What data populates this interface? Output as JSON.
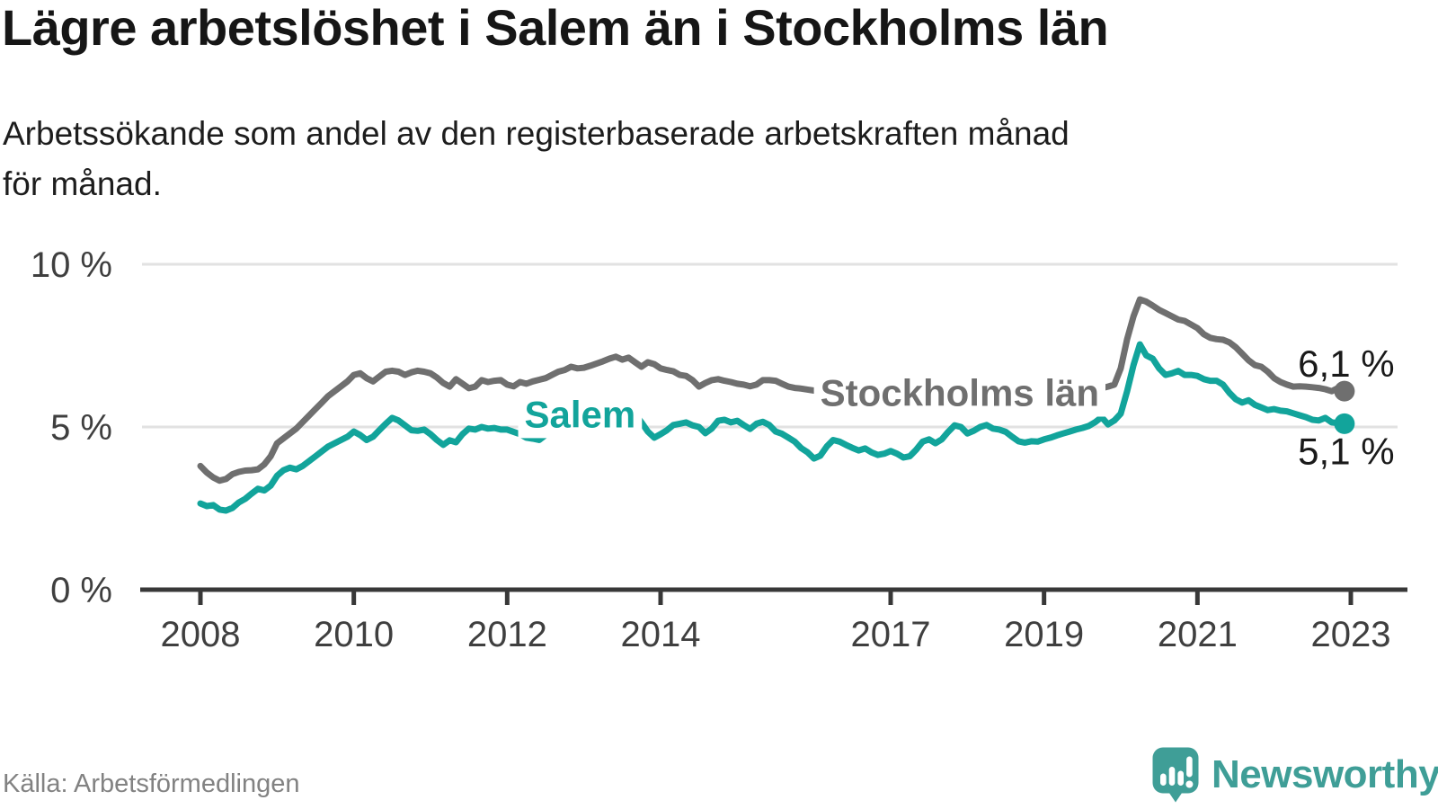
{
  "title": "Lägre arbetslöshet i Salem än i Stockholms län",
  "subtitle_lines": [
    "Arbetssökande som andel av den registerbaserade arbetskraften månad",
    "för månad."
  ],
  "source": "Källa: Arbetsförmedlingen",
  "brand": {
    "name": "Newsworthy",
    "icon": "bar-chart-speech-bubble-icon",
    "color": "#3f9e97"
  },
  "colors": {
    "teal": "#12a49b",
    "gray": "#6f6f6f",
    "grid": "#e2e2e2",
    "axis": "#383838",
    "tick_label": "#3f3f3f",
    "text_dark": "#1a1a1a",
    "source": "#828282",
    "brand": "#3f9e97"
  },
  "chart_data": {
    "type": "line",
    "title": "Lägre arbetslöshet i Salem än i Stockholms län",
    "xlabel": "",
    "ylabel": "Arbetssökande som andel av den registerbaserade arbetskraften",
    "x_start": 2008.0,
    "points_per_year": 12,
    "xlim": [
      2007.3,
      2023.8
    ],
    "ylim": [
      0,
      10.3
    ],
    "grid": true,
    "legend_position": "inline-labels",
    "y_ticks": [
      {
        "value": 0,
        "label": "0 %"
      },
      {
        "value": 5,
        "label": "5 %"
      },
      {
        "value": 10,
        "label": "10 %"
      }
    ],
    "x_ticks": [
      {
        "value": 2008,
        "label": "2008"
      },
      {
        "value": 2010,
        "label": "2010"
      },
      {
        "value": 2012,
        "label": "2012"
      },
      {
        "value": 2014,
        "label": "2014"
      },
      {
        "value": 2017,
        "label": "2017"
      },
      {
        "value": 2019,
        "label": "2019"
      },
      {
        "value": 2021,
        "label": "2021"
      },
      {
        "value": 2023,
        "label": "2023"
      }
    ],
    "series": [
      {
        "name": "Stockholms län",
        "color": "#6f6f6f",
        "end_label": "6,1 %",
        "end_label_side": "above",
        "label_pos": {
          "year": 2017.9,
          "value": 6.05
        },
        "values": [
          3.8,
          3.6,
          3.45,
          3.35,
          3.4,
          3.55,
          3.62,
          3.66,
          3.67,
          3.7,
          3.85,
          4.1,
          4.5,
          4.65,
          4.8,
          4.95,
          5.15,
          5.35,
          5.55,
          5.75,
          5.95,
          6.1,
          6.25,
          6.4,
          6.6,
          6.65,
          6.5,
          6.4,
          6.55,
          6.7,
          6.73,
          6.7,
          6.6,
          6.68,
          6.73,
          6.7,
          6.65,
          6.52,
          6.35,
          6.24,
          6.47,
          6.33,
          6.19,
          6.24,
          6.44,
          6.38,
          6.42,
          6.44,
          6.3,
          6.25,
          6.38,
          6.33,
          6.4,
          6.45,
          6.5,
          6.6,
          6.7,
          6.75,
          6.85,
          6.8,
          6.82,
          6.88,
          6.95,
          7.02,
          7.1,
          7.16,
          7.07,
          7.13,
          6.99,
          6.85,
          6.99,
          6.93,
          6.8,
          6.75,
          6.71,
          6.6,
          6.57,
          6.44,
          6.24,
          6.35,
          6.44,
          6.47,
          6.42,
          6.38,
          6.33,
          6.3,
          6.25,
          6.3,
          6.44,
          6.44,
          6.42,
          6.33,
          6.24,
          6.2,
          6.18,
          6.15,
          6.12,
          6.1,
          6.08,
          6.05,
          6.02,
          6.0,
          5.98,
          6.0,
          6.02,
          6.0,
          5.98,
          5.96,
          5.95,
          5.92,
          5.9,
          5.93,
          5.96,
          5.92,
          5.88,
          5.9,
          5.95,
          5.98,
          6.0,
          5.97,
          5.95,
          5.92,
          5.9,
          5.88,
          5.85,
          5.88,
          5.9,
          5.93,
          5.96,
          5.99,
          6.02,
          6.05,
          6.08,
          6.1,
          6.12,
          6.1,
          6.12,
          6.15,
          6.17,
          6.15,
          6.2,
          6.19,
          6.24,
          6.3,
          6.8,
          7.7,
          8.4,
          8.92,
          8.85,
          8.73,
          8.6,
          8.5,
          8.4,
          8.3,
          8.26,
          8.15,
          8.04,
          7.85,
          7.74,
          7.7,
          7.68,
          7.6,
          7.45,
          7.25,
          7.05,
          6.9,
          6.85,
          6.7,
          6.5,
          6.38,
          6.3,
          6.24,
          6.25,
          6.24,
          6.22,
          6.2,
          6.16,
          6.1,
          6.2,
          6.1
        ]
      },
      {
        "name": "Salem",
        "color": "#12a49b",
        "end_label": "5,1 %",
        "end_label_side": "below",
        "label_pos": {
          "year": 2012.95,
          "value": 5.39
        },
        "values": [
          2.65,
          2.57,
          2.6,
          2.46,
          2.43,
          2.51,
          2.68,
          2.79,
          2.95,
          3.1,
          3.05,
          3.2,
          3.5,
          3.67,
          3.75,
          3.7,
          3.8,
          3.95,
          4.1,
          4.25,
          4.4,
          4.5,
          4.6,
          4.7,
          4.86,
          4.75,
          4.6,
          4.7,
          4.9,
          5.1,
          5.28,
          5.2,
          5.05,
          4.9,
          4.88,
          4.92,
          4.78,
          4.6,
          4.45,
          4.59,
          4.53,
          4.78,
          4.95,
          4.92,
          5.0,
          4.95,
          4.97,
          4.92,
          4.92,
          4.85,
          4.78,
          4.67,
          4.64,
          4.6,
          4.75,
          4.9,
          5.0,
          5.1,
          5.2,
          5.3,
          5.35,
          5.4,
          5.45,
          5.5,
          5.55,
          5.6,
          5.5,
          5.47,
          5.41,
          5.14,
          4.86,
          4.67,
          4.78,
          4.9,
          5.06,
          5.1,
          5.14,
          5.05,
          5.0,
          4.81,
          4.95,
          5.19,
          5.22,
          5.14,
          5.19,
          5.06,
          4.94,
          5.1,
          5.16,
          5.06,
          4.86,
          4.79,
          4.67,
          4.55,
          4.35,
          4.22,
          4.03,
          4.12,
          4.4,
          4.6,
          4.55,
          4.45,
          4.36,
          4.28,
          4.34,
          4.22,
          4.14,
          4.18,
          4.26,
          4.18,
          4.06,
          4.1,
          4.3,
          4.55,
          4.62,
          4.5,
          4.62,
          4.85,
          5.05,
          5.0,
          4.8,
          4.88,
          5.0,
          5.06,
          4.95,
          4.92,
          4.85,
          4.7,
          4.56,
          4.52,
          4.56,
          4.55,
          4.62,
          4.67,
          4.74,
          4.8,
          4.86,
          4.92,
          4.97,
          5.03,
          5.15,
          5.3,
          5.08,
          5.2,
          5.41,
          6.1,
          6.9,
          7.54,
          7.2,
          7.1,
          6.8,
          6.6,
          6.65,
          6.72,
          6.6,
          6.6,
          6.57,
          6.47,
          6.42,
          6.42,
          6.3,
          6.05,
          5.85,
          5.75,
          5.82,
          5.68,
          5.6,
          5.52,
          5.55,
          5.5,
          5.48,
          5.42,
          5.36,
          5.3,
          5.22,
          5.2,
          5.28,
          5.14,
          5.12,
          5.1
        ]
      }
    ]
  }
}
